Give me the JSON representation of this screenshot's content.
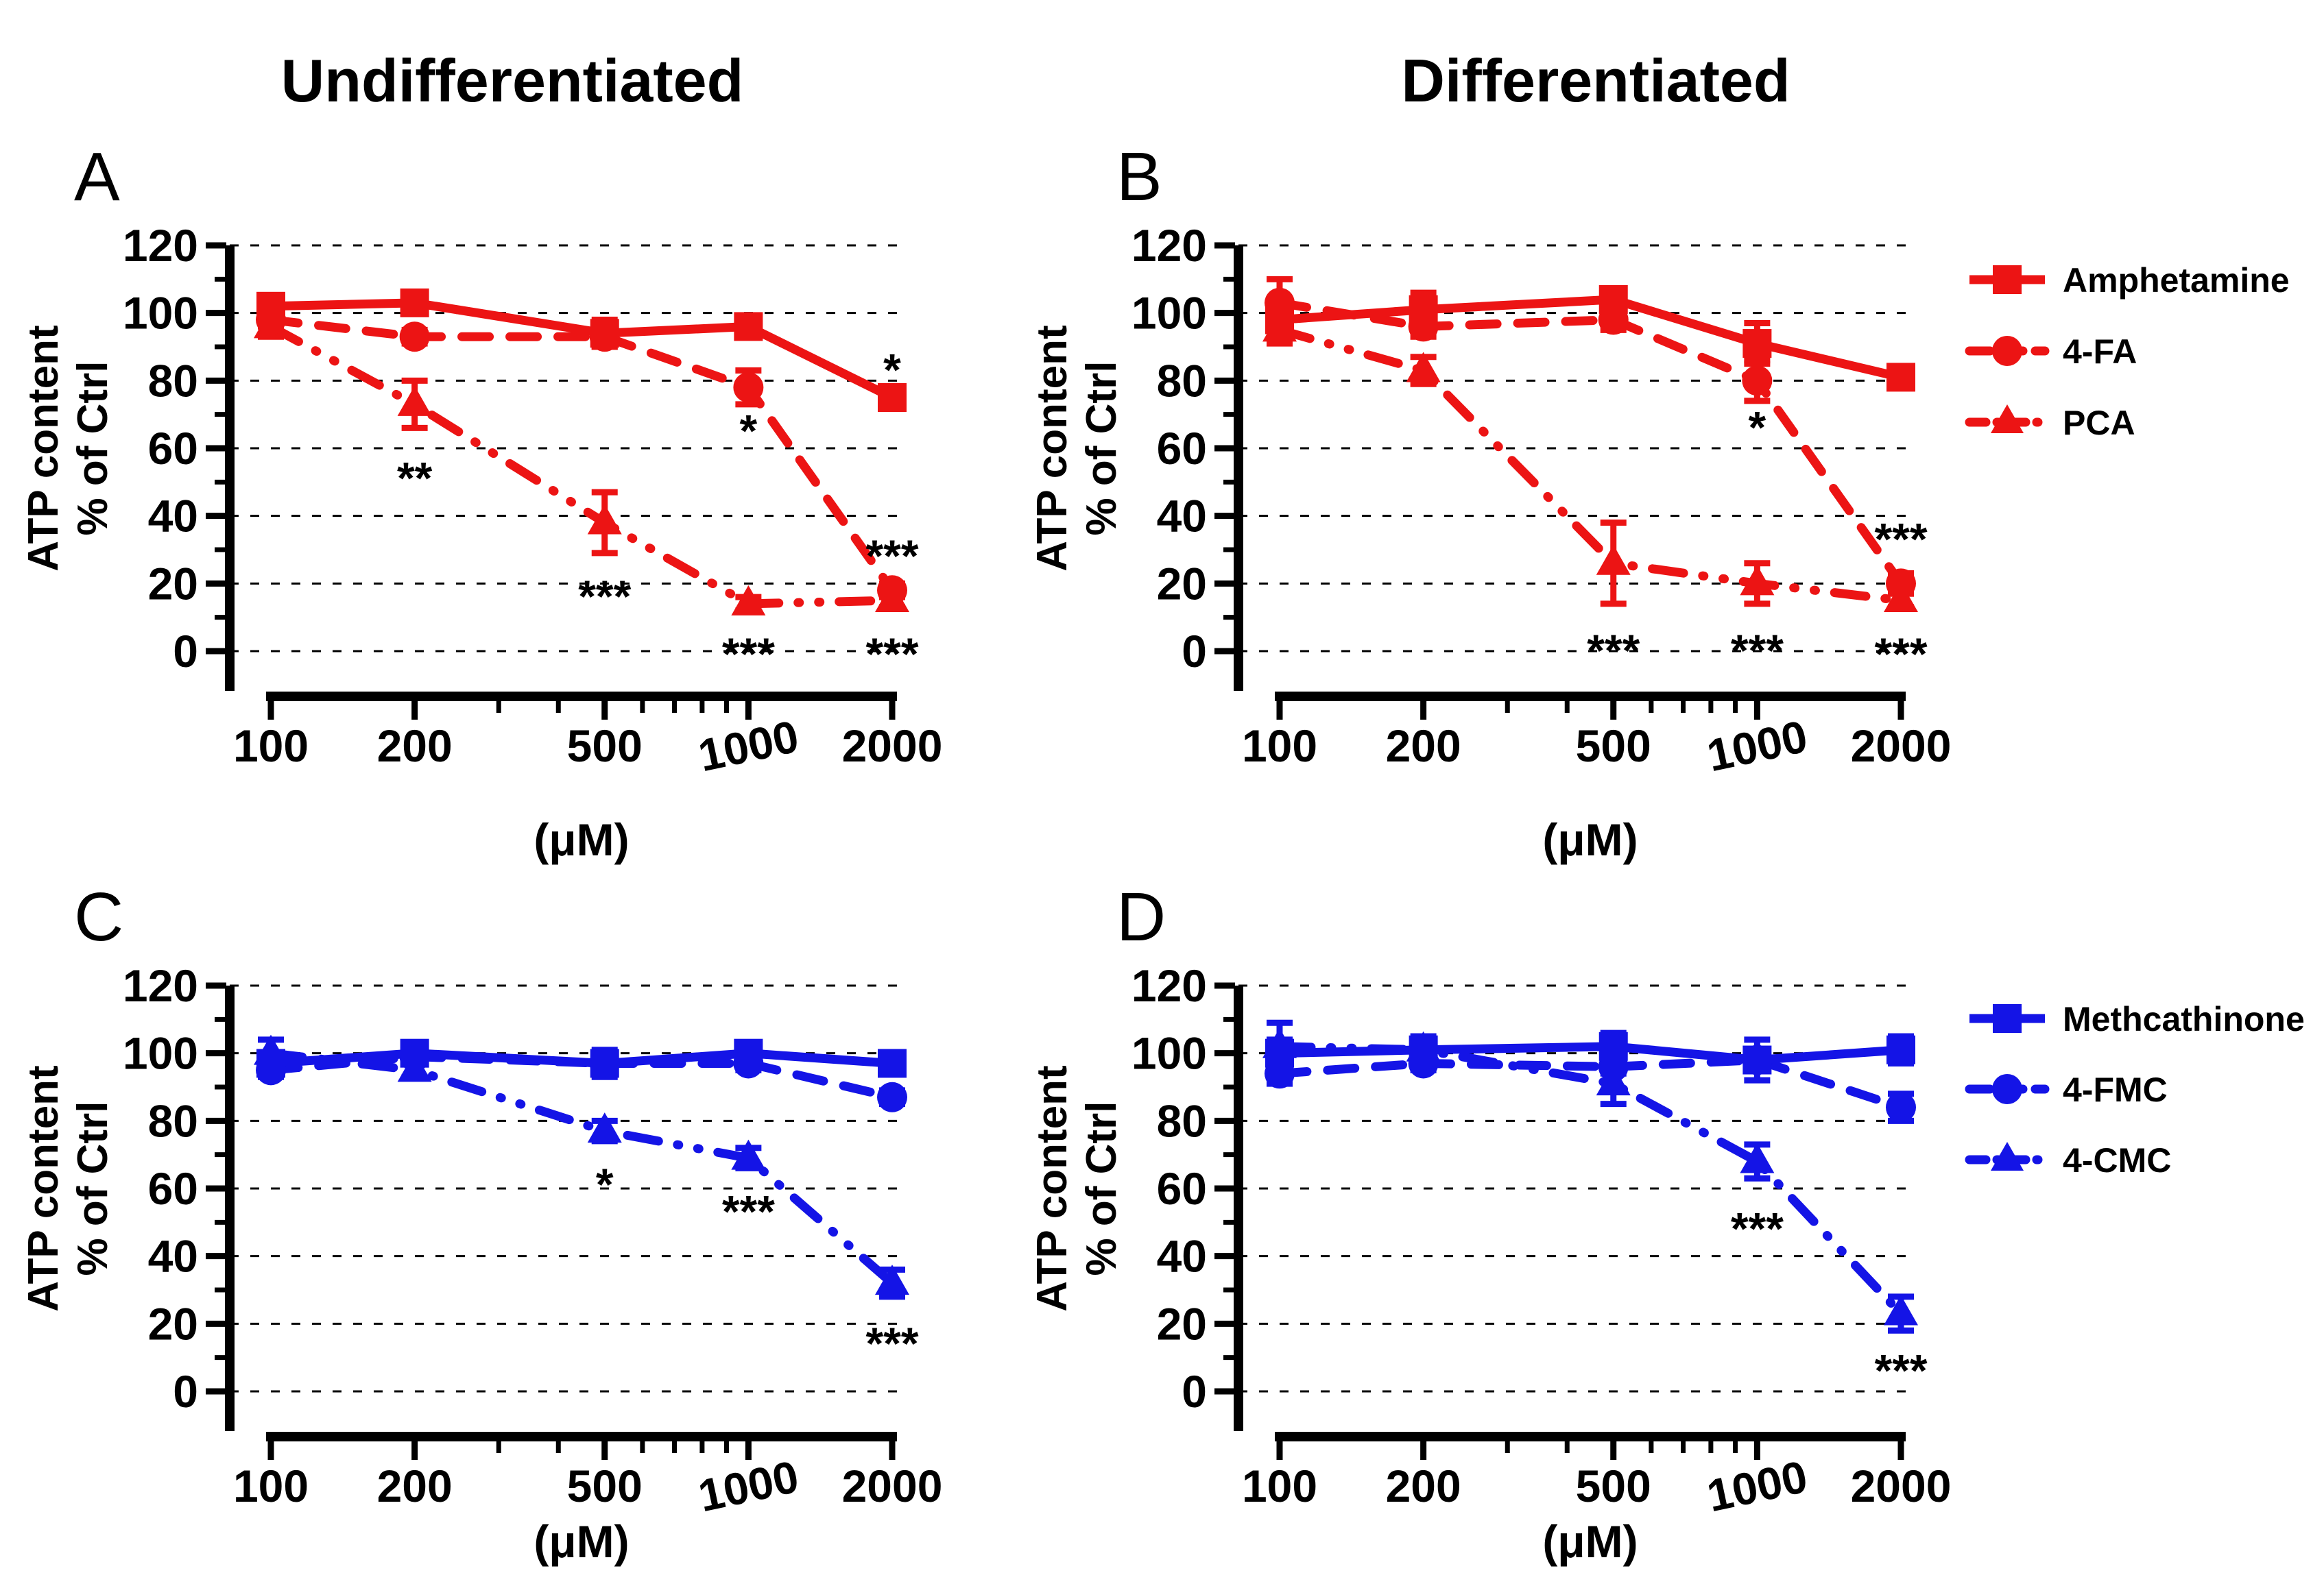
{
  "figure": {
    "column_titles": [
      "Undifferentiated",
      "Differentiated"
    ],
    "ylabel": [
      "ATP content",
      "% of Ctrl"
    ],
    "xlabel": "(μM)",
    "colors": {
      "red": "#EC1414",
      "blue": "#1414E6",
      "text": "#000000",
      "grid": "#000000"
    }
  },
  "chart_data": [
    {
      "id": "A",
      "type": "line",
      "column": "Undifferentiated",
      "xscale": "log",
      "x": [
        100,
        200,
        500,
        1000,
        2000
      ],
      "xlabel": "(μM)",
      "ylabel": "ATP content % of Ctrl",
      "ylim": [
        0,
        120
      ],
      "yticks": [
        0,
        20,
        40,
        60,
        80,
        100,
        120
      ],
      "grid": true,
      "color": "#EC1414",
      "series": [
        {
          "name": "Amphetamine",
          "marker": "square",
          "line": "solid",
          "values": [
            102,
            103,
            94,
            96,
            75
          ],
          "errors": [
            3,
            2,
            4,
            2,
            2
          ]
        },
        {
          "name": "4-FA",
          "marker": "circle",
          "line": "dashed",
          "values": [
            98,
            93,
            93,
            78,
            18
          ],
          "errors": [
            2,
            2,
            3,
            5,
            2
          ]
        },
        {
          "name": "PCA",
          "marker": "triangle",
          "line": "dashdotdot",
          "values": [
            96,
            73,
            38,
            14,
            15
          ],
          "errors": [
            3,
            7,
            9,
            2,
            2
          ]
        }
      ],
      "annotations": [
        {
          "x": 200,
          "y": 53,
          "text": "**"
        },
        {
          "x": 500,
          "y": 18,
          "text": "***"
        },
        {
          "x": 1000,
          "y": 67,
          "text": "*"
        },
        {
          "x": 1000,
          "y": 1,
          "text": "***"
        },
        {
          "x": 2000,
          "y": 85,
          "text": "*"
        },
        {
          "x": 2000,
          "y": 30,
          "text": "***"
        },
        {
          "x": 2000,
          "y": 1,
          "text": "***"
        }
      ]
    },
    {
      "id": "B",
      "type": "line",
      "column": "Differentiated",
      "xscale": "log",
      "x": [
        100,
        200,
        500,
        1000,
        2000
      ],
      "xlabel": "(μM)",
      "ylabel": "ATP content % of Ctrl",
      "ylim": [
        0,
        120
      ],
      "yticks": [
        0,
        20,
        40,
        60,
        80,
        100,
        120
      ],
      "grid": true,
      "color": "#EC1414",
      "series": [
        {
          "name": "Amphetamine",
          "marker": "square",
          "line": "solid",
          "values": [
            98,
            101,
            104,
            91,
            81
          ],
          "errors": [
            6,
            5,
            2,
            6,
            3
          ]
        },
        {
          "name": "4-FA",
          "marker": "circle",
          "line": "dashed",
          "values": [
            103,
            96,
            98,
            80,
            20
          ],
          "errors": [
            7,
            3,
            3,
            6,
            3
          ]
        },
        {
          "name": "PCA",
          "marker": "triangle",
          "line": "dashdotdot",
          "values": [
            95,
            83,
            26,
            20,
            15
          ],
          "errors": [
            4,
            4,
            12,
            6,
            2
          ]
        }
      ],
      "annotations": [
        {
          "x": 1000,
          "y": 68,
          "text": "*"
        },
        {
          "x": 500,
          "y": 2,
          "text": "***"
        },
        {
          "x": 1000,
          "y": 2,
          "text": "***"
        },
        {
          "x": 2000,
          "y": 35,
          "text": "***"
        },
        {
          "x": 2000,
          "y": 1,
          "text": "***"
        }
      ]
    },
    {
      "id": "C",
      "type": "line",
      "column": "Undifferentiated",
      "xscale": "log",
      "x": [
        100,
        200,
        500,
        1000,
        2000
      ],
      "xlabel": "(μM)",
      "ylabel": "ATP content % of Ctrl",
      "ylim": [
        0,
        120
      ],
      "yticks": [
        0,
        20,
        40,
        60,
        80,
        100,
        120
      ],
      "grid": true,
      "color": "#1414E6",
      "series": [
        {
          "name": "Methcathinone",
          "marker": "square",
          "line": "solid",
          "values": [
            97,
            100,
            97,
            100,
            97
          ],
          "errors": [
            3,
            3,
            4,
            3,
            2
          ]
        },
        {
          "name": "4-FMC",
          "marker": "circle",
          "line": "dashed",
          "values": [
            95,
            99,
            97,
            97,
            87
          ],
          "errors": [
            2,
            2,
            2,
            2,
            2
          ]
        },
        {
          "name": "4-CMC",
          "marker": "triangle",
          "line": "dashdotdot",
          "values": [
            100,
            95,
            77,
            69,
            32
          ],
          "errors": [
            4,
            2,
            3,
            3,
            4
          ]
        }
      ],
      "annotations": [
        {
          "x": 500,
          "y": 63,
          "text": "*"
        },
        {
          "x": 1000,
          "y": 55,
          "text": "***"
        },
        {
          "x": 2000,
          "y": 16,
          "text": "***"
        }
      ]
    },
    {
      "id": "D",
      "type": "line",
      "column": "Differentiated",
      "xscale": "log",
      "x": [
        100,
        200,
        500,
        1000,
        2000
      ],
      "xlabel": "(μM)",
      "ylabel": "ATP content % of Ctrl",
      "ylim": [
        0,
        120
      ],
      "yticks": [
        0,
        20,
        40,
        60,
        80,
        100,
        120
      ],
      "grid": true,
      "color": "#1414E6",
      "series": [
        {
          "name": "Methcathinone",
          "marker": "square",
          "line": "solid",
          "values": [
            100,
            101,
            102,
            98,
            101
          ],
          "errors": [
            9,
            4,
            4,
            6,
            4
          ]
        },
        {
          "name": "4-FMC",
          "marker": "circle",
          "line": "dashed",
          "values": [
            94,
            97,
            96,
            98,
            84
          ],
          "errors": [
            2,
            2,
            2,
            2,
            4
          ]
        },
        {
          "name": "4-CMC",
          "marker": "triangle",
          "line": "dashdotdot",
          "values": [
            102,
            101,
            91,
            68,
            23
          ],
          "errors": [
            2,
            3,
            6,
            5,
            5
          ]
        }
      ],
      "annotations": [
        {
          "x": 1000,
          "y": 50,
          "text": "***"
        },
        {
          "x": 2000,
          "y": 8,
          "text": "***"
        }
      ]
    }
  ]
}
